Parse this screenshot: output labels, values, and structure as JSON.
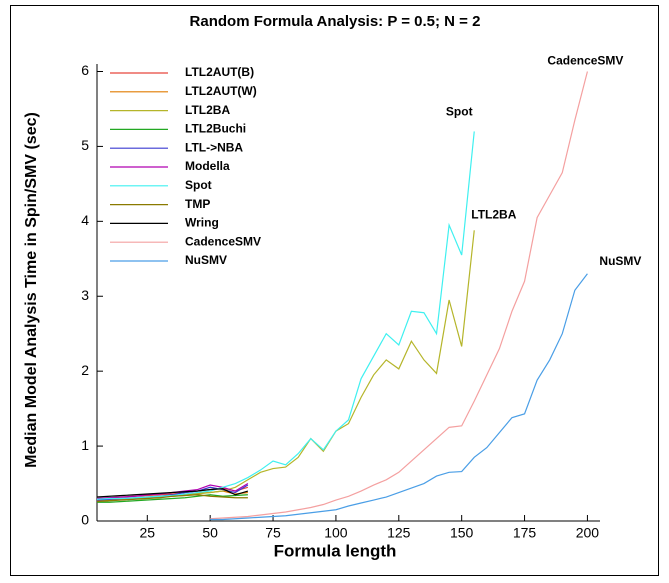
{
  "chart_data": {
    "type": "line",
    "title": "Random Formula Analysis: P = 0.5; N = 2",
    "x_label": "Formula length",
    "y_label": "Median Model Analysis Time in Spin/SMV (sec)",
    "xlim": [
      5,
      205
    ],
    "ylim": [
      0,
      6.1
    ],
    "xticks": [
      25,
      50,
      75,
      100,
      125,
      150,
      175,
      200
    ],
    "yticks": [
      0,
      1,
      2,
      3,
      4,
      5,
      6
    ],
    "legend": "upper left",
    "annotations": [
      "CadenceSMV",
      "Spot",
      "LTL2BA",
      "NuSMV"
    ],
    "series": [
      {
        "name": "LTL2AUT(B)",
        "color": "#e8463c",
        "x": [
          5,
          10,
          15,
          20,
          25,
          30,
          35,
          40,
          45,
          50,
          55,
          60,
          65
        ],
        "values": [
          0.3,
          0.31,
          0.32,
          0.33,
          0.34,
          0.35,
          0.36,
          0.38,
          0.4,
          0.42,
          0.44,
          0.4,
          0.45
        ]
      },
      {
        "name": "LTL2AUT(W)",
        "color": "#e07b00",
        "x": [
          5,
          10,
          15,
          20,
          25,
          30,
          35,
          40,
          45,
          50,
          55,
          60,
          65
        ],
        "values": [
          0.27,
          0.28,
          0.29,
          0.3,
          0.31,
          0.32,
          0.33,
          0.35,
          0.37,
          0.38,
          0.4,
          0.36,
          0.38
        ]
      },
      {
        "name": "LTL2BA",
        "color": "#b5b52a",
        "x": [
          5,
          10,
          15,
          20,
          25,
          30,
          35,
          40,
          45,
          50,
          55,
          60,
          65,
          70,
          75,
          80,
          85,
          90,
          95,
          100,
          105,
          110,
          115,
          120,
          125,
          130,
          135,
          140,
          145,
          150,
          155
        ],
        "values": [
          0.28,
          0.29,
          0.3,
          0.3,
          0.31,
          0.32,
          0.33,
          0.34,
          0.36,
          0.38,
          0.4,
          0.45,
          0.55,
          0.65,
          0.7,
          0.72,
          0.85,
          1.1,
          0.93,
          1.2,
          1.3,
          1.65,
          1.95,
          2.15,
          2.03,
          2.4,
          2.15,
          1.97,
          2.95,
          2.33,
          3.88
        ]
      },
      {
        "name": "LTL2Buchi",
        "color": "#22a822",
        "x": [
          5,
          10,
          15,
          20,
          25,
          30,
          35,
          40,
          45,
          50,
          55,
          60,
          65
        ],
        "values": [
          0.25,
          0.25,
          0.26,
          0.27,
          0.28,
          0.29,
          0.3,
          0.31,
          0.33,
          0.35,
          0.33,
          0.34,
          0.35
        ]
      },
      {
        "name": "LTL->NBA",
        "color": "#3a3ad0",
        "x": [
          5,
          10,
          15,
          20,
          25,
          30,
          35,
          40,
          45,
          50,
          55,
          60,
          65
        ],
        "values": [
          0.28,
          0.29,
          0.3,
          0.31,
          0.32,
          0.33,
          0.35,
          0.38,
          0.4,
          0.45,
          0.42,
          0.38,
          0.48
        ]
      },
      {
        "name": "Modella",
        "color": "#b000b0",
        "x": [
          5,
          10,
          15,
          20,
          25,
          30,
          35,
          40,
          45,
          50,
          55,
          60,
          65
        ],
        "values": [
          0.3,
          0.31,
          0.32,
          0.33,
          0.35,
          0.36,
          0.38,
          0.4,
          0.42,
          0.48,
          0.45,
          0.4,
          0.5
        ]
      },
      {
        "name": "Spot",
        "color": "#3ff0f0",
        "x": [
          5,
          10,
          15,
          20,
          25,
          30,
          35,
          40,
          45,
          50,
          55,
          60,
          65,
          70,
          75,
          80,
          85,
          90,
          95,
          100,
          105,
          110,
          115,
          120,
          125,
          130,
          135,
          140,
          145,
          150,
          155
        ],
        "values": [
          0.29,
          0.3,
          0.3,
          0.31,
          0.32,
          0.33,
          0.34,
          0.36,
          0.38,
          0.4,
          0.45,
          0.5,
          0.58,
          0.68,
          0.8,
          0.75,
          0.9,
          1.1,
          0.95,
          1.2,
          1.35,
          1.9,
          2.2,
          2.5,
          2.35,
          2.8,
          2.78,
          2.5,
          3.95,
          3.55,
          5.2
        ]
      },
      {
        "name": "TMP",
        "color": "#8a7a00",
        "x": [
          5,
          10,
          15,
          20,
          25,
          30,
          35,
          40,
          45,
          50,
          55,
          60,
          65
        ],
        "values": [
          0.26,
          0.27,
          0.28,
          0.29,
          0.3,
          0.31,
          0.33,
          0.34,
          0.35,
          0.33,
          0.32,
          0.31,
          0.31
        ]
      },
      {
        "name": "Wring",
        "color": "#000000",
        "x": [
          5,
          10,
          15,
          20,
          25,
          30,
          35,
          40,
          45,
          50,
          55,
          60,
          65
        ],
        "values": [
          0.32,
          0.33,
          0.34,
          0.35,
          0.36,
          0.37,
          0.38,
          0.39,
          0.4,
          0.42,
          0.43,
          0.35,
          0.4
        ]
      },
      {
        "name": "CadenceSMV",
        "color": "#f4a0a0",
        "x": [
          50,
          55,
          60,
          65,
          70,
          75,
          80,
          85,
          90,
          95,
          100,
          105,
          110,
          115,
          120,
          125,
          130,
          135,
          140,
          145,
          150,
          155,
          160,
          165,
          170,
          175,
          180,
          185,
          190,
          195,
          200
        ],
        "values": [
          0.03,
          0.04,
          0.05,
          0.06,
          0.08,
          0.1,
          0.12,
          0.15,
          0.18,
          0.22,
          0.28,
          0.33,
          0.4,
          0.48,
          0.55,
          0.65,
          0.8,
          0.95,
          1.1,
          1.25,
          1.27,
          1.6,
          1.95,
          2.3,
          2.8,
          3.2,
          4.05,
          4.35,
          4.65,
          5.35,
          6.0
        ]
      },
      {
        "name": "NuSMV",
        "color": "#4a9ee6",
        "x": [
          50,
          55,
          60,
          65,
          70,
          75,
          80,
          85,
          90,
          95,
          100,
          105,
          110,
          115,
          120,
          125,
          130,
          135,
          140,
          145,
          150,
          155,
          160,
          165,
          170,
          175,
          180,
          185,
          190,
          195,
          200
        ],
        "values": [
          0.02,
          0.02,
          0.03,
          0.04,
          0.05,
          0.06,
          0.07,
          0.09,
          0.11,
          0.13,
          0.15,
          0.2,
          0.24,
          0.28,
          0.32,
          0.38,
          0.44,
          0.5,
          0.6,
          0.65,
          0.66,
          0.85,
          0.98,
          1.18,
          1.38,
          1.43,
          1.88,
          2.15,
          2.5,
          3.08,
          3.3
        ]
      }
    ]
  }
}
